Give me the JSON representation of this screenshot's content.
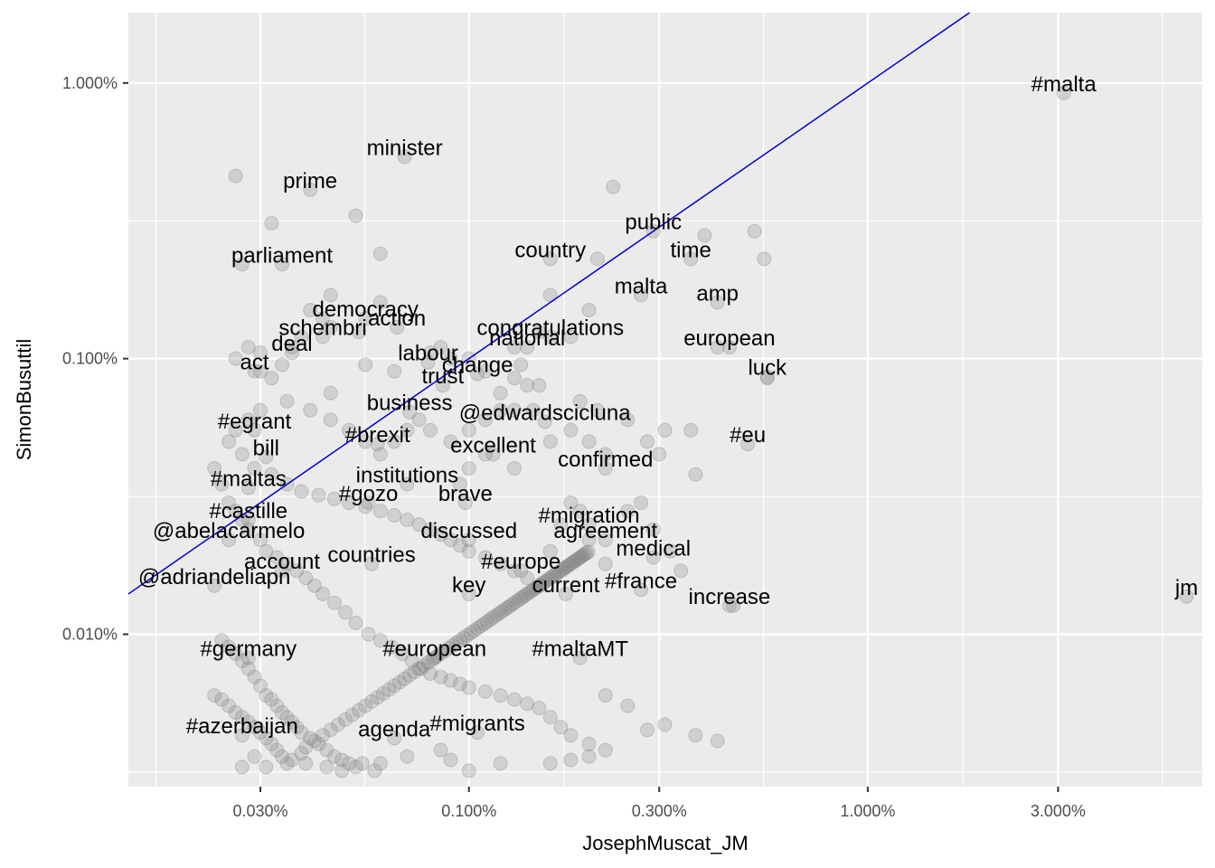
{
  "chart_data": {
    "type": "scatter",
    "xlabel": "JosephMuscat_JM",
    "ylabel": "SimonBusuttil",
    "x_scale": "log10",
    "y_scale": "log10",
    "xlim": [
      0.014,
      6.9
    ],
    "ylim": [
      0.0028,
      1.8
    ],
    "x_ticks": [
      {
        "value": 0.03,
        "label": "0.030%"
      },
      {
        "value": 0.1,
        "label": "0.100%"
      },
      {
        "value": 0.3,
        "label": "0.300%"
      },
      {
        "value": 1.0,
        "label": "1.000%"
      },
      {
        "value": 3.0,
        "label": "3.000%"
      }
    ],
    "y_ticks": [
      {
        "value": 0.01,
        "label": "0.010%"
      },
      {
        "value": 0.1,
        "label": "0.100%"
      },
      {
        "value": 1.0,
        "label": "1.000%"
      }
    ],
    "grid": true,
    "background_color": "#ebebeb",
    "grid_color": "#ffffff",
    "point_color": "#7f7f7f",
    "point_opacity": 0.25,
    "reference_line": {
      "type": "y = x",
      "color": "#0000cc"
    },
    "labeled_points": [
      {
        "label": "#malta",
        "x": 3.1,
        "y": 0.92
      },
      {
        "label": "minister",
        "x": 0.069,
        "y": 0.54
      },
      {
        "label": "prime",
        "x": 0.04,
        "y": 0.41
      },
      {
        "label": "parliament",
        "x": 0.034,
        "y": 0.22
      },
      {
        "label": "country",
        "x": 0.16,
        "y": 0.23
      },
      {
        "label": "public",
        "x": 0.29,
        "y": 0.29
      },
      {
        "label": "time",
        "x": 0.36,
        "y": 0.23
      },
      {
        "label": "malta",
        "x": 0.27,
        "y": 0.17
      },
      {
        "label": "democracy",
        "x": 0.055,
        "y": 0.14
      },
      {
        "label": "schembri",
        "x": 0.043,
        "y": 0.12
      },
      {
        "label": "action",
        "x": 0.066,
        "y": 0.13
      },
      {
        "label": "congratulations",
        "x": 0.16,
        "y": 0.12
      },
      {
        "label": "amp",
        "x": 0.42,
        "y": 0.16
      },
      {
        "label": "deal",
        "x": 0.036,
        "y": 0.105
      },
      {
        "label": "national",
        "x": 0.14,
        "y": 0.11
      },
      {
        "label": "european",
        "x": 0.45,
        "y": 0.11
      },
      {
        "label": "labour",
        "x": 0.079,
        "y": 0.097
      },
      {
        "label": "act",
        "x": 0.029,
        "y": 0.09
      },
      {
        "label": "trust",
        "x": 0.086,
        "y": 0.08
      },
      {
        "label": "change",
        "x": 0.105,
        "y": 0.088
      },
      {
        "label": "luck",
        "x": 0.56,
        "y": 0.086
      },
      {
        "label": "business",
        "x": 0.071,
        "y": 0.064
      },
      {
        "label": "#egrant",
        "x": 0.029,
        "y": 0.055
      },
      {
        "label": "@edwardscicluna",
        "x": 0.155,
        "y": 0.059
      },
      {
        "label": "#eu",
        "x": 0.5,
        "y": 0.049
      },
      {
        "label": "#brexit",
        "x": 0.059,
        "y": 0.049
      },
      {
        "label": "excellent",
        "x": 0.115,
        "y": 0.045
      },
      {
        "label": "bill",
        "x": 0.031,
        "y": 0.044
      },
      {
        "label": "institutions",
        "x": 0.07,
        "y": 0.035
      },
      {
        "label": "#maltas",
        "x": 0.028,
        "y": 0.034
      },
      {
        "label": "confirmed",
        "x": 0.22,
        "y": 0.04
      },
      {
        "label": "#gozo",
        "x": 0.056,
        "y": 0.03
      },
      {
        "label": "brave",
        "x": 0.098,
        "y": 0.03
      },
      {
        "label": "#castille",
        "x": 0.028,
        "y": 0.026
      },
      {
        "label": "#migration",
        "x": 0.2,
        "y": 0.025
      },
      {
        "label": "@abelacarmelo",
        "x": 0.025,
        "y": 0.022
      },
      {
        "label": "discussed",
        "x": 0.1,
        "y": 0.022
      },
      {
        "label": "agreement",
        "x": 0.22,
        "y": 0.022
      },
      {
        "label": "account",
        "x": 0.034,
        "y": 0.017
      },
      {
        "label": "countries",
        "x": 0.057,
        "y": 0.018
      },
      {
        "label": "#europe",
        "x": 0.135,
        "y": 0.017
      },
      {
        "label": "medical",
        "x": 0.29,
        "y": 0.019
      },
      {
        "label": "@adriandeliapn",
        "x": 0.023,
        "y": 0.015
      },
      {
        "label": "key",
        "x": 0.1,
        "y": 0.014
      },
      {
        "label": "current",
        "x": 0.175,
        "y": 0.014
      },
      {
        "label": "#france",
        "x": 0.27,
        "y": 0.0145
      },
      {
        "label": "jm",
        "x": 6.3,
        "y": 0.0137
      },
      {
        "label": "#germany",
        "x": 0.028,
        "y": 0.0082
      },
      {
        "label": "#european",
        "x": 0.082,
        "y": 0.0082
      },
      {
        "label": "#maltaMT",
        "x": 0.19,
        "y": 0.0082
      },
      {
        "label": "increase",
        "x": 0.45,
        "y": 0.0127
      },
      {
        "label": "#azerbaijan",
        "x": 0.027,
        "y": 0.0043
      },
      {
        "label": "agenda",
        "x": 0.065,
        "y": 0.0042
      },
      {
        "label": "#migrants",
        "x": 0.105,
        "y": 0.0044
      }
    ],
    "unlabeled_points": [
      [
        0.026,
        0.46
      ],
      [
        0.052,
        0.33
      ],
      [
        0.032,
        0.31
      ],
      [
        0.027,
        0.22
      ],
      [
        0.06,
        0.24
      ],
      [
        0.06,
        0.16
      ],
      [
        0.045,
        0.17
      ],
      [
        0.04,
        0.15
      ],
      [
        0.038,
        0.12
      ],
      [
        0.036,
        0.11
      ],
      [
        0.028,
        0.11
      ],
      [
        0.03,
        0.105
      ],
      [
        0.026,
        0.1
      ],
      [
        0.034,
        0.095
      ],
      [
        0.03,
        0.09
      ],
      [
        0.032,
        0.085
      ],
      [
        0.045,
        0.075
      ],
      [
        0.055,
        0.095
      ],
      [
        0.065,
        0.09
      ],
      [
        0.08,
        0.105
      ],
      [
        0.085,
        0.11
      ],
      [
        0.09,
        0.1
      ],
      [
        0.1,
        0.1
      ],
      [
        0.13,
        0.11
      ],
      [
        0.15,
        0.125
      ],
      [
        0.18,
        0.12
      ],
      [
        0.2,
        0.15
      ],
      [
        0.16,
        0.17
      ],
      [
        0.21,
        0.23
      ],
      [
        0.23,
        0.42
      ],
      [
        0.39,
        0.28
      ],
      [
        0.52,
        0.29
      ],
      [
        0.55,
        0.23
      ],
      [
        0.42,
        0.11
      ],
      [
        0.56,
        0.085
      ],
      [
        0.045,
        0.13
      ],
      [
        0.053,
        0.125
      ],
      [
        0.043,
        0.14
      ],
      [
        0.11,
        0.09
      ],
      [
        0.13,
        0.085
      ],
      [
        0.14,
        0.08
      ],
      [
        0.15,
        0.08
      ],
      [
        0.135,
        0.095
      ],
      [
        0.12,
        0.075
      ],
      [
        0.12,
        0.065
      ],
      [
        0.11,
        0.06
      ],
      [
        0.1,
        0.055
      ],
      [
        0.13,
        0.065
      ],
      [
        0.145,
        0.065
      ],
      [
        0.19,
        0.07
      ],
      [
        0.21,
        0.065
      ],
      [
        0.25,
        0.06
      ],
      [
        0.28,
        0.05
      ],
      [
        0.31,
        0.055
      ],
      [
        0.36,
        0.055
      ],
      [
        0.37,
        0.038
      ],
      [
        0.3,
        0.045
      ],
      [
        0.22,
        0.045
      ],
      [
        0.2,
        0.05
      ],
      [
        0.18,
        0.055
      ],
      [
        0.16,
        0.05
      ],
      [
        0.13,
        0.04
      ],
      [
        0.11,
        0.045
      ],
      [
        0.1,
        0.04
      ],
      [
        0.095,
        0.035
      ],
      [
        0.09,
        0.05
      ],
      [
        0.08,
        0.055
      ],
      [
        0.075,
        0.06
      ],
      [
        0.07,
        0.055
      ],
      [
        0.065,
        0.05
      ],
      [
        0.06,
        0.045
      ],
      [
        0.055,
        0.05
      ],
      [
        0.05,
        0.055
      ],
      [
        0.045,
        0.06
      ],
      [
        0.04,
        0.065
      ],
      [
        0.035,
        0.07
      ],
      [
        0.03,
        0.065
      ],
      [
        0.028,
        0.06
      ],
      [
        0.026,
        0.055
      ],
      [
        0.025,
        0.05
      ],
      [
        0.027,
        0.045
      ],
      [
        0.029,
        0.04
      ],
      [
        0.032,
        0.038
      ],
      [
        0.035,
        0.035
      ],
      [
        0.038,
        0.033
      ],
      [
        0.042,
        0.032
      ],
      [
        0.046,
        0.031
      ],
      [
        0.05,
        0.03
      ],
      [
        0.055,
        0.029
      ],
      [
        0.06,
        0.028
      ],
      [
        0.065,
        0.027
      ],
      [
        0.07,
        0.026
      ],
      [
        0.075,
        0.025
      ],
      [
        0.08,
        0.024
      ],
      [
        0.085,
        0.023
      ],
      [
        0.09,
        0.022
      ],
      [
        0.095,
        0.021
      ],
      [
        0.1,
        0.02
      ],
      [
        0.11,
        0.019
      ],
      [
        0.12,
        0.018
      ],
      [
        0.13,
        0.017
      ],
      [
        0.14,
        0.016
      ],
      [
        0.15,
        0.015
      ],
      [
        0.16,
        0.02
      ],
      [
        0.17,
        0.025
      ],
      [
        0.18,
        0.03
      ],
      [
        0.19,
        0.028
      ],
      [
        0.2,
        0.022
      ],
      [
        0.22,
        0.018
      ],
      [
        0.25,
        0.028
      ],
      [
        0.27,
        0.03
      ],
      [
        0.29,
        0.024
      ],
      [
        0.32,
        0.02
      ],
      [
        0.34,
        0.017
      ],
      [
        0.46,
        0.0127
      ],
      [
        0.023,
        0.04
      ],
      [
        0.024,
        0.035
      ],
      [
        0.025,
        0.03
      ],
      [
        0.026,
        0.028
      ],
      [
        0.027,
        0.026
      ],
      [
        0.028,
        0.024
      ],
      [
        0.03,
        0.022
      ],
      [
        0.031,
        0.02
      ],
      [
        0.033,
        0.019
      ],
      [
        0.035,
        0.018
      ],
      [
        0.037,
        0.017
      ],
      [
        0.039,
        0.016
      ],
      [
        0.041,
        0.015
      ],
      [
        0.043,
        0.014
      ],
      [
        0.046,
        0.013
      ],
      [
        0.049,
        0.012
      ],
      [
        0.052,
        0.011
      ],
      [
        0.056,
        0.01
      ],
      [
        0.06,
        0.0095
      ],
      [
        0.064,
        0.009
      ],
      [
        0.068,
        0.0085
      ],
      [
        0.072,
        0.008
      ],
      [
        0.076,
        0.0075
      ],
      [
        0.08,
        0.0072
      ],
      [
        0.085,
        0.007
      ],
      [
        0.09,
        0.0068
      ],
      [
        0.095,
        0.0066
      ],
      [
        0.1,
        0.0064
      ],
      [
        0.11,
        0.0062
      ],
      [
        0.12,
        0.006
      ],
      [
        0.13,
        0.0058
      ],
      [
        0.14,
        0.0056
      ],
      [
        0.15,
        0.0054
      ],
      [
        0.16,
        0.005
      ],
      [
        0.17,
        0.0046
      ],
      [
        0.18,
        0.0043
      ],
      [
        0.2,
        0.004
      ],
      [
        0.22,
        0.0038
      ],
      [
        0.024,
        0.0095
      ],
      [
        0.025,
        0.009
      ],
      [
        0.026,
        0.0085
      ],
      [
        0.027,
        0.008
      ],
      [
        0.028,
        0.0075
      ],
      [
        0.029,
        0.007
      ],
      [
        0.03,
        0.0065
      ],
      [
        0.031,
        0.006
      ],
      [
        0.032,
        0.0058
      ],
      [
        0.033,
        0.0055
      ],
      [
        0.034,
        0.0052
      ],
      [
        0.035,
        0.005
      ],
      [
        0.036,
        0.0048
      ],
      [
        0.037,
        0.0046
      ],
      [
        0.038,
        0.0044
      ],
      [
        0.04,
        0.0042
      ],
      [
        0.042,
        0.004
      ],
      [
        0.044,
        0.0038
      ],
      [
        0.046,
        0.0036
      ],
      [
        0.048,
        0.0035
      ],
      [
        0.05,
        0.0034
      ],
      [
        0.052,
        0.0033
      ],
      [
        0.054,
        0.0034
      ],
      [
        0.023,
        0.006
      ],
      [
        0.024,
        0.0058
      ],
      [
        0.025,
        0.0055
      ],
      [
        0.026,
        0.0052
      ],
      [
        0.027,
        0.005
      ],
      [
        0.028,
        0.0048
      ],
      [
        0.029,
        0.0046
      ],
      [
        0.03,
        0.0044
      ],
      [
        0.031,
        0.0042
      ],
      [
        0.032,
        0.004
      ],
      [
        0.033,
        0.0038
      ],
      [
        0.034,
        0.0036
      ],
      [
        0.035,
        0.0034
      ],
      [
        0.036,
        0.0035
      ],
      [
        0.038,
        0.0037
      ],
      [
        0.039,
        0.0039
      ],
      [
        0.041,
        0.0041
      ],
      [
        0.043,
        0.0043
      ],
      [
        0.045,
        0.0045
      ],
      [
        0.047,
        0.0047
      ],
      [
        0.049,
        0.0049
      ],
      [
        0.051,
        0.0051
      ],
      [
        0.053,
        0.0053
      ],
      [
        0.055,
        0.0055
      ],
      [
        0.057,
        0.0057
      ],
      [
        0.059,
        0.0059
      ],
      [
        0.061,
        0.0061
      ],
      [
        0.063,
        0.0063
      ],
      [
        0.065,
        0.0065
      ],
      [
        0.067,
        0.0067
      ],
      [
        0.069,
        0.0069
      ],
      [
        0.071,
        0.0071
      ],
      [
        0.073,
        0.0073
      ],
      [
        0.075,
        0.0075
      ],
      [
        0.077,
        0.0077
      ],
      [
        0.079,
        0.0079
      ],
      [
        0.081,
        0.0081
      ],
      [
        0.083,
        0.0083
      ],
      [
        0.085,
        0.0085
      ],
      [
        0.087,
        0.0087
      ],
      [
        0.089,
        0.0089
      ],
      [
        0.091,
        0.0091
      ],
      [
        0.093,
        0.0093
      ],
      [
        0.095,
        0.0095
      ],
      [
        0.097,
        0.0097
      ],
      [
        0.099,
        0.0099
      ],
      [
        0.101,
        0.0101
      ],
      [
        0.103,
        0.0103
      ],
      [
        0.105,
        0.0105
      ],
      [
        0.107,
        0.0107
      ],
      [
        0.109,
        0.0109
      ],
      [
        0.111,
        0.0111
      ],
      [
        0.113,
        0.0113
      ],
      [
        0.115,
        0.0115
      ],
      [
        0.117,
        0.0117
      ],
      [
        0.119,
        0.0119
      ],
      [
        0.121,
        0.0121
      ],
      [
        0.123,
        0.0123
      ],
      [
        0.125,
        0.0125
      ],
      [
        0.127,
        0.0127
      ],
      [
        0.129,
        0.0129
      ],
      [
        0.131,
        0.0131
      ],
      [
        0.133,
        0.0133
      ],
      [
        0.135,
        0.0135
      ],
      [
        0.137,
        0.0137
      ],
      [
        0.139,
        0.0139
      ],
      [
        0.141,
        0.0141
      ],
      [
        0.143,
        0.0143
      ],
      [
        0.145,
        0.0145
      ],
      [
        0.147,
        0.0147
      ],
      [
        0.149,
        0.0149
      ],
      [
        0.151,
        0.0151
      ],
      [
        0.153,
        0.0153
      ],
      [
        0.155,
        0.0155
      ],
      [
        0.157,
        0.0157
      ],
      [
        0.159,
        0.0159
      ],
      [
        0.161,
        0.0161
      ],
      [
        0.163,
        0.0163
      ],
      [
        0.165,
        0.0165
      ],
      [
        0.167,
        0.0167
      ],
      [
        0.169,
        0.0169
      ],
      [
        0.171,
        0.0171
      ],
      [
        0.173,
        0.0173
      ],
      [
        0.175,
        0.0175
      ],
      [
        0.177,
        0.0177
      ],
      [
        0.179,
        0.0179
      ],
      [
        0.181,
        0.0181
      ],
      [
        0.183,
        0.0183
      ],
      [
        0.185,
        0.0185
      ],
      [
        0.187,
        0.0187
      ],
      [
        0.189,
        0.0189
      ],
      [
        0.191,
        0.0191
      ],
      [
        0.193,
        0.0193
      ],
      [
        0.195,
        0.0195
      ],
      [
        0.197,
        0.0197
      ],
      [
        0.199,
        0.0199
      ],
      [
        0.22,
        0.006
      ],
      [
        0.25,
        0.0055
      ],
      [
        0.28,
        0.0045
      ],
      [
        0.31,
        0.0047
      ],
      [
        0.37,
        0.0043
      ],
      [
        0.42,
        0.0041
      ],
      [
        0.16,
        0.0034
      ],
      [
        0.18,
        0.0035
      ],
      [
        0.2,
        0.0036
      ],
      [
        0.12,
        0.0034
      ],
      [
        0.1,
        0.0032
      ],
      [
        0.09,
        0.0035
      ],
      [
        0.085,
        0.0038
      ],
      [
        0.07,
        0.0036
      ],
      [
        0.06,
        0.0034
      ],
      [
        0.058,
        0.0032
      ],
      [
        0.048,
        0.0032
      ],
      [
        0.044,
        0.0033
      ],
      [
        0.039,
        0.0034
      ],
      [
        0.031,
        0.0033
      ],
      [
        0.029,
        0.0036
      ],
      [
        0.027,
        0.0033
      ]
    ]
  }
}
